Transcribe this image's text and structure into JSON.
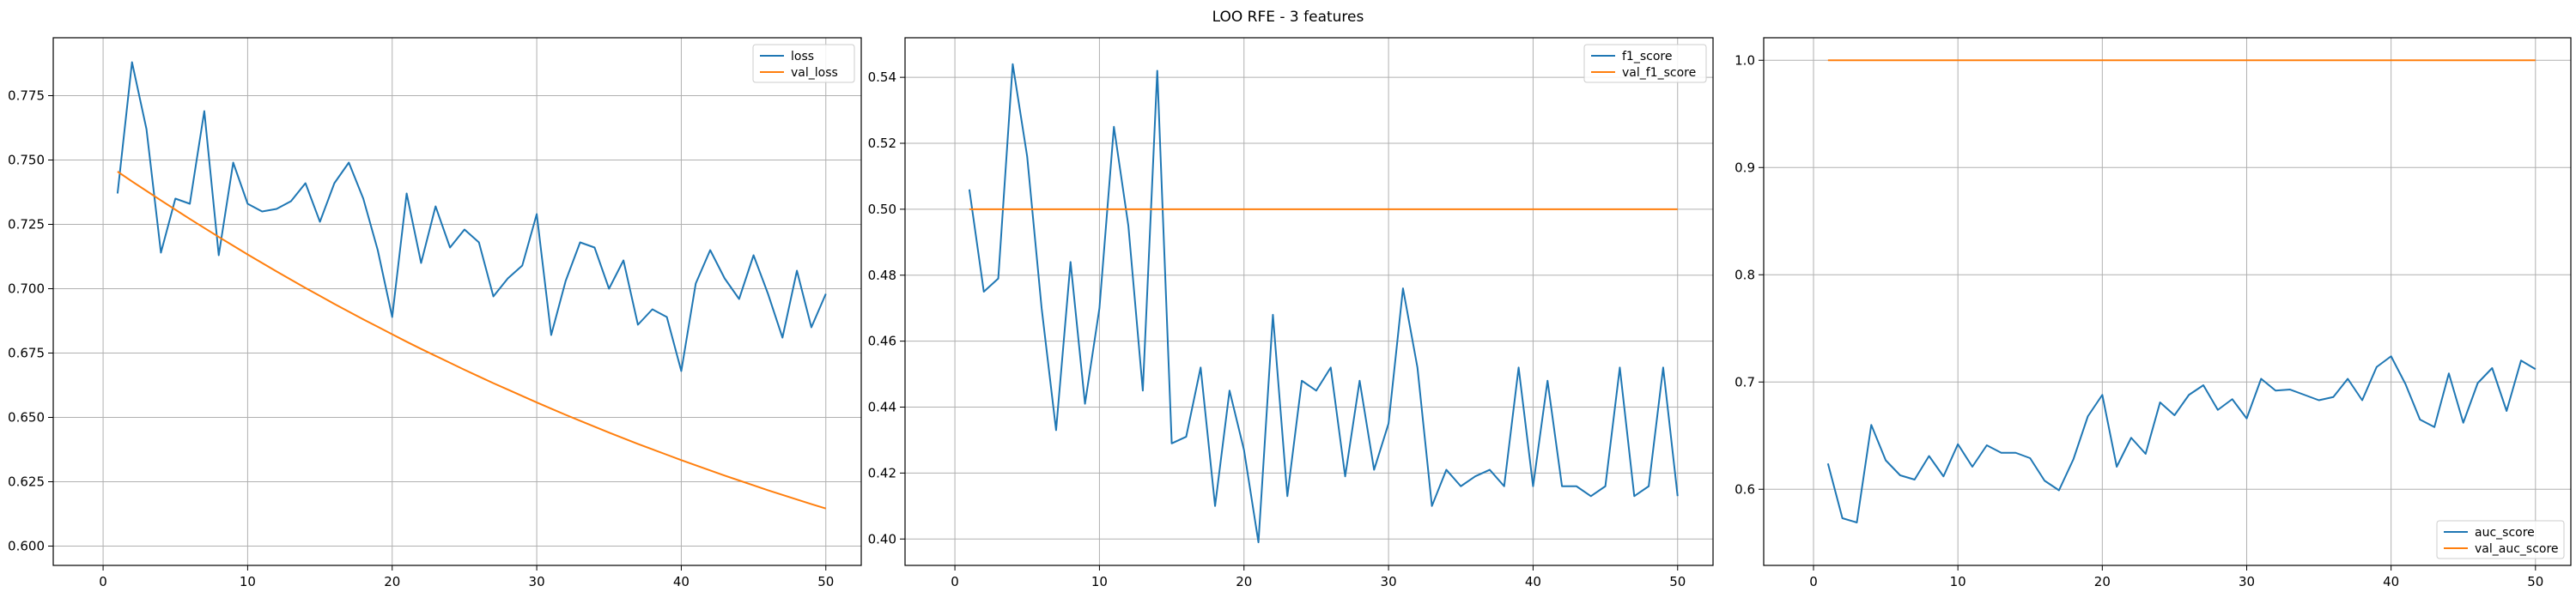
{
  "title": "LOO RFE - 3 features",
  "colors": {
    "train": "#1f77b4",
    "val": "#ff7f0e",
    "grid": "#b0b0b0",
    "axes": "#000000"
  },
  "chart_data": [
    {
      "type": "line",
      "xlim": [
        -3.45,
        52.45
      ],
      "ylim": [
        0.5925,
        0.7975
      ],
      "xticks": [
        0,
        10,
        20,
        30,
        40,
        50
      ],
      "yticks": [
        0.6,
        0.625,
        0.65,
        0.675,
        0.7,
        0.725,
        0.75,
        0.775
      ],
      "ytick_labels": [
        "0.600",
        "0.625",
        "0.650",
        "0.675",
        "0.700",
        "0.725",
        "0.750",
        "0.775"
      ],
      "grid": true,
      "legend": "upper right",
      "x": [
        1,
        2,
        3,
        4,
        5,
        6,
        7,
        8,
        9,
        10,
        11,
        12,
        13,
        14,
        15,
        16,
        17,
        18,
        19,
        20,
        21,
        22,
        23,
        24,
        25,
        26,
        27,
        28,
        29,
        30,
        31,
        32,
        33,
        34,
        35,
        36,
        37,
        38,
        39,
        40,
        41,
        42,
        43,
        44,
        45,
        46,
        47,
        48,
        49,
        50
      ],
      "series": [
        {
          "name": "loss",
          "color": "#1f77b4",
          "values": [
            0.737,
            0.788,
            0.762,
            0.714,
            0.735,
            0.733,
            0.769,
            0.713,
            0.749,
            0.733,
            0.73,
            0.731,
            0.734,
            0.741,
            0.726,
            0.741,
            0.749,
            0.735,
            0.715,
            0.689,
            0.737,
            0.71,
            0.732,
            0.716,
            0.723,
            0.718,
            0.697,
            0.704,
            0.709,
            0.729,
            0.682,
            0.703,
            0.718,
            0.716,
            0.7,
            0.711,
            0.686,
            0.692,
            0.689,
            0.668,
            0.702,
            0.715,
            0.704,
            0.696,
            0.713,
            0.698,
            0.681,
            0.707,
            0.685,
            0.698
          ]
        },
        {
          "name": "val_loss",
          "color": "#ff7f0e",
          "values": [
            0.7455,
            0.7417,
            0.738,
            0.7343,
            0.7307,
            0.7271,
            0.7236,
            0.7201,
            0.7167,
            0.7133,
            0.71,
            0.7067,
            0.7035,
            0.7003,
            0.6972,
            0.6941,
            0.6911,
            0.6881,
            0.6852,
            0.6823,
            0.6794,
            0.6766,
            0.6739,
            0.6712,
            0.6685,
            0.6659,
            0.6633,
            0.6608,
            0.6583,
            0.6558,
            0.6534,
            0.651,
            0.6487,
            0.6464,
            0.6441,
            0.6419,
            0.6397,
            0.6376,
            0.6355,
            0.6334,
            0.6314,
            0.6294,
            0.6274,
            0.6255,
            0.6236,
            0.6217,
            0.6199,
            0.6181,
            0.6163,
            0.6146
          ]
        }
      ]
    },
    {
      "type": "line",
      "xlim": [
        -3.45,
        52.45
      ],
      "ylim": [
        0.392,
        0.552
      ],
      "xticks": [
        0,
        10,
        20,
        30,
        40,
        50
      ],
      "yticks": [
        0.4,
        0.42,
        0.44,
        0.46,
        0.48,
        0.5,
        0.52,
        0.54
      ],
      "ytick_labels": [
        "0.40",
        "0.42",
        "0.44",
        "0.46",
        "0.48",
        "0.50",
        "0.52",
        "0.54"
      ],
      "grid": true,
      "legend": "upper right",
      "x": [
        1,
        2,
        3,
        4,
        5,
        6,
        7,
        8,
        9,
        10,
        11,
        12,
        13,
        14,
        15,
        16,
        17,
        18,
        19,
        20,
        21,
        22,
        23,
        24,
        25,
        26,
        27,
        28,
        29,
        30,
        31,
        32,
        33,
        34,
        35,
        36,
        37,
        38,
        39,
        40,
        41,
        42,
        43,
        44,
        45,
        46,
        47,
        48,
        49,
        50
      ],
      "series": [
        {
          "name": "f1_score",
          "color": "#1f77b4",
          "values": [
            0.506,
            0.475,
            0.479,
            0.544,
            0.516,
            0.47,
            0.433,
            0.484,
            0.441,
            0.47,
            0.525,
            0.495,
            0.445,
            0.542,
            0.429,
            0.431,
            0.452,
            0.41,
            0.445,
            0.427,
            0.399,
            0.468,
            0.413,
            0.448,
            0.445,
            0.452,
            0.419,
            0.448,
            0.421,
            0.435,
            0.476,
            0.452,
            0.41,
            0.421,
            0.416,
            0.419,
            0.421,
            0.416,
            0.452,
            0.416,
            0.448,
            0.416,
            0.416,
            0.413,
            0.416,
            0.452,
            0.413,
            0.416,
            0.452,
            0.413
          ]
        },
        {
          "name": "val_f1_score",
          "color": "#ff7f0e",
          "values": [
            0.5,
            0.5,
            0.5,
            0.5,
            0.5,
            0.5,
            0.5,
            0.5,
            0.5,
            0.5,
            0.5,
            0.5,
            0.5,
            0.5,
            0.5,
            0.5,
            0.5,
            0.5,
            0.5,
            0.5,
            0.5,
            0.5,
            0.5,
            0.5,
            0.5,
            0.5,
            0.5,
            0.5,
            0.5,
            0.5,
            0.5,
            0.5,
            0.5,
            0.5,
            0.5,
            0.5,
            0.5,
            0.5,
            0.5,
            0.5,
            0.5,
            0.5,
            0.5,
            0.5,
            0.5,
            0.5,
            0.5,
            0.5,
            0.5,
            0.5
          ]
        }
      ]
    },
    {
      "type": "line",
      "xlim": [
        -3.45,
        52.45
      ],
      "ylim": [
        0.529,
        1.021
      ],
      "xticks": [
        0,
        10,
        20,
        30,
        40,
        50
      ],
      "yticks": [
        0.6,
        0.7,
        0.8,
        0.9,
        1.0
      ],
      "ytick_labels": [
        "0.6",
        "0.7",
        "0.8",
        "0.9",
        "1.0"
      ],
      "grid": true,
      "legend": "lower right",
      "x": [
        1,
        2,
        3,
        4,
        5,
        6,
        7,
        8,
        9,
        10,
        11,
        12,
        13,
        14,
        15,
        16,
        17,
        18,
        19,
        20,
        21,
        22,
        23,
        24,
        25,
        26,
        27,
        28,
        29,
        30,
        31,
        32,
        33,
        34,
        35,
        36,
        37,
        38,
        39,
        40,
        41,
        42,
        43,
        44,
        45,
        46,
        47,
        48,
        49,
        50
      ],
      "series": [
        {
          "name": "auc_score",
          "color": "#1f77b4",
          "values": [
            0.624,
            0.573,
            0.569,
            0.66,
            0.627,
            0.613,
            0.609,
            0.631,
            0.612,
            0.642,
            0.621,
            0.641,
            0.634,
            0.634,
            0.629,
            0.608,
            0.599,
            0.628,
            0.668,
            0.688,
            0.621,
            0.648,
            0.633,
            0.681,
            0.669,
            0.688,
            0.697,
            0.674,
            0.684,
            0.666,
            0.703,
            0.692,
            0.693,
            0.688,
            0.683,
            0.686,
            0.703,
            0.683,
            0.714,
            0.724,
            0.698,
            0.665,
            0.658,
            0.708,
            0.662,
            0.699,
            0.713,
            0.673,
            0.72,
            0.712
          ]
        },
        {
          "name": "val_auc_score",
          "color": "#ff7f0e",
          "values": [
            1.0,
            1.0,
            1.0,
            1.0,
            1.0,
            1.0,
            1.0,
            1.0,
            1.0,
            1.0,
            1.0,
            1.0,
            1.0,
            1.0,
            1.0,
            1.0,
            1.0,
            1.0,
            1.0,
            1.0,
            1.0,
            1.0,
            1.0,
            1.0,
            1.0,
            1.0,
            1.0,
            1.0,
            1.0,
            1.0,
            1.0,
            1.0,
            1.0,
            1.0,
            1.0,
            1.0,
            1.0,
            1.0,
            1.0,
            1.0,
            1.0,
            1.0,
            1.0,
            1.0,
            1.0,
            1.0,
            1.0,
            1.0,
            1.0,
            1.0
          ]
        }
      ]
    }
  ]
}
